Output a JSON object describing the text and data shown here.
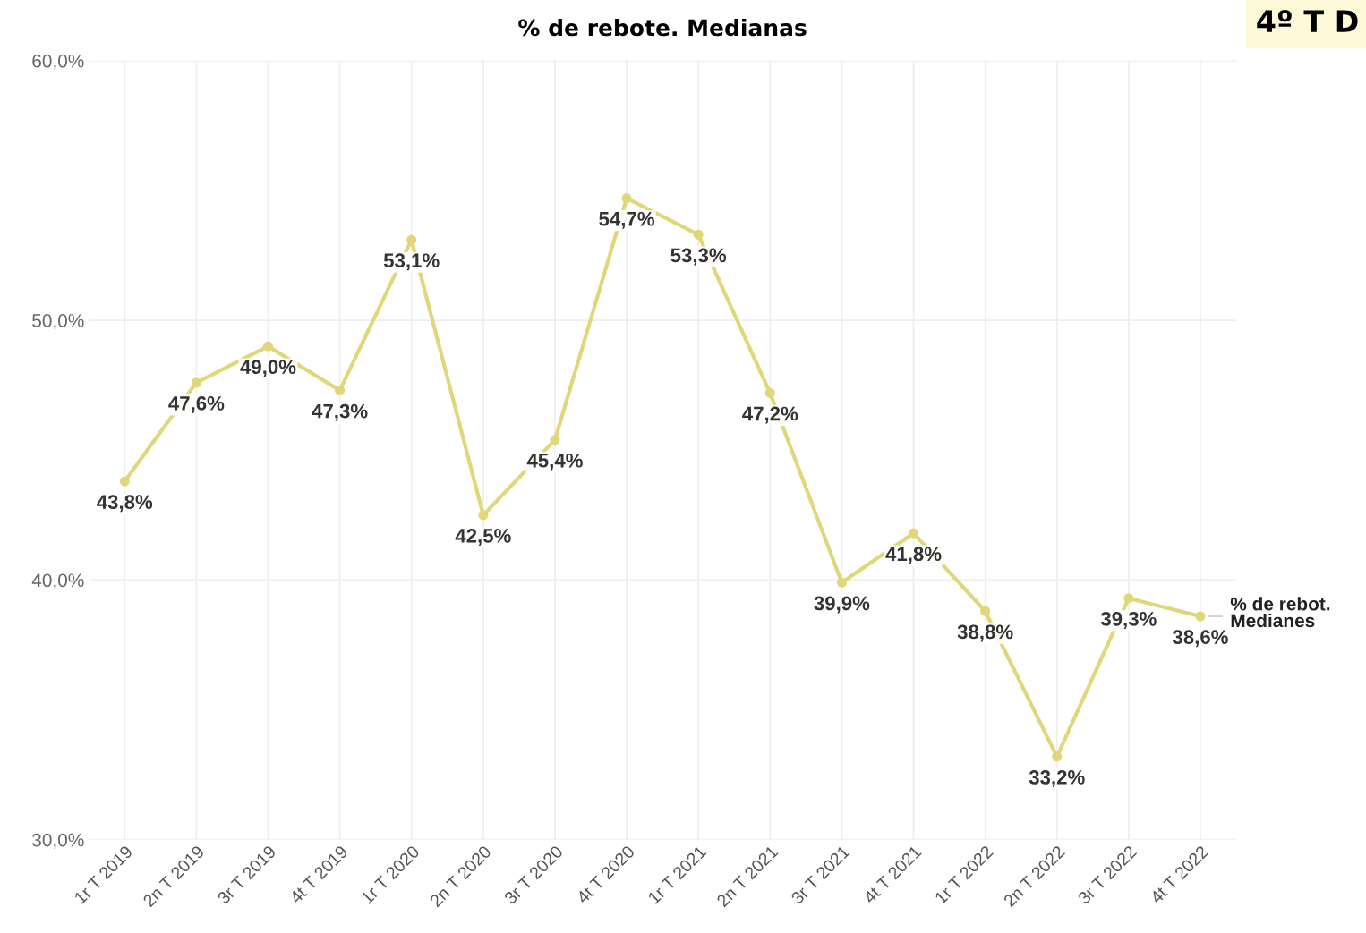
{
  "chart_data": {
    "type": "line",
    "title": "% de rebote. Medianas",
    "categories": [
      "1r T 2019",
      "2n T 2019",
      "3r T 2019",
      "4t T 2019",
      "1r T 2020",
      "2n T 2020",
      "3r T 2020",
      "4t T 2020",
      "1r T 2021",
      "2n T 2021",
      "3r T 2021",
      "4t T 2021",
      "1r T 2022",
      "2n T 2022",
      "3r T 2022",
      "4t T 2022"
    ],
    "series": [
      {
        "name": "% de rebot.\nMedianes",
        "color": "#e0d77a",
        "values": [
          43.8,
          47.6,
          49.0,
          47.3,
          53.1,
          42.5,
          45.4,
          54.7,
          53.3,
          47.2,
          39.9,
          41.8,
          38.8,
          33.2,
          39.3,
          38.6
        ],
        "value_labels": [
          "43,8%",
          "47,6%",
          "49,0%",
          "47,3%",
          "53,1%",
          "42,5%",
          "45,4%",
          "54,7%",
          "53,3%",
          "47,2%",
          "39,9%",
          "41,8%",
          "38,8%",
          "33,2%",
          "39,3%",
          "38,6%"
        ]
      }
    ],
    "ylim": [
      30,
      60
    ],
    "yticks": [
      {
        "value": 30,
        "label": "30,0%"
      },
      {
        "value": 40,
        "label": "40,0%"
      },
      {
        "value": 50,
        "label": "50,0%"
      },
      {
        "value": 60,
        "label": "60,0%"
      }
    ],
    "grid": true,
    "marker": "circle",
    "line_style": "solid",
    "legend": false,
    "annotations": [
      "4º T D"
    ]
  }
}
